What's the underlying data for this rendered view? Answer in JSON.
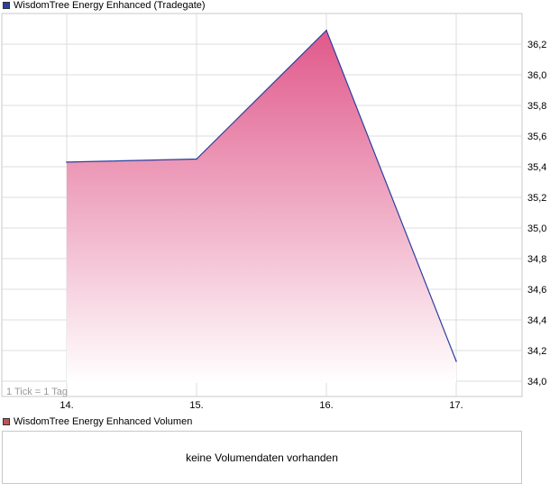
{
  "main_legend": {
    "label": "WisdomTree Energy Enhanced (Tradegate)",
    "color": "#2c3fa0"
  },
  "volume_legend": {
    "label": "WisdomTree Energy Enhanced Volumen",
    "color": "#c0505a"
  },
  "volume_panel": {
    "message": "keine Volumendaten vorhanden"
  },
  "tick_note": "1 Tick = 1 Tag",
  "chart_data": {
    "type": "area",
    "categories": [
      "14.",
      "15.",
      "16.",
      "17."
    ],
    "values": [
      35.43,
      35.45,
      36.29,
      34.13
    ],
    "y_ticks": [
      "34,0",
      "34,2",
      "34,4",
      "34,6",
      "34,8",
      "35,0",
      "35,2",
      "35,4",
      "35,6",
      "35,8",
      "36,0",
      "36,2"
    ],
    "ylim": [
      33.9,
      36.4
    ],
    "grid": true,
    "line_color": "#2c3fa0",
    "fill_top_color": "#e0588a",
    "fill_bottom_color": "#ffffff"
  }
}
